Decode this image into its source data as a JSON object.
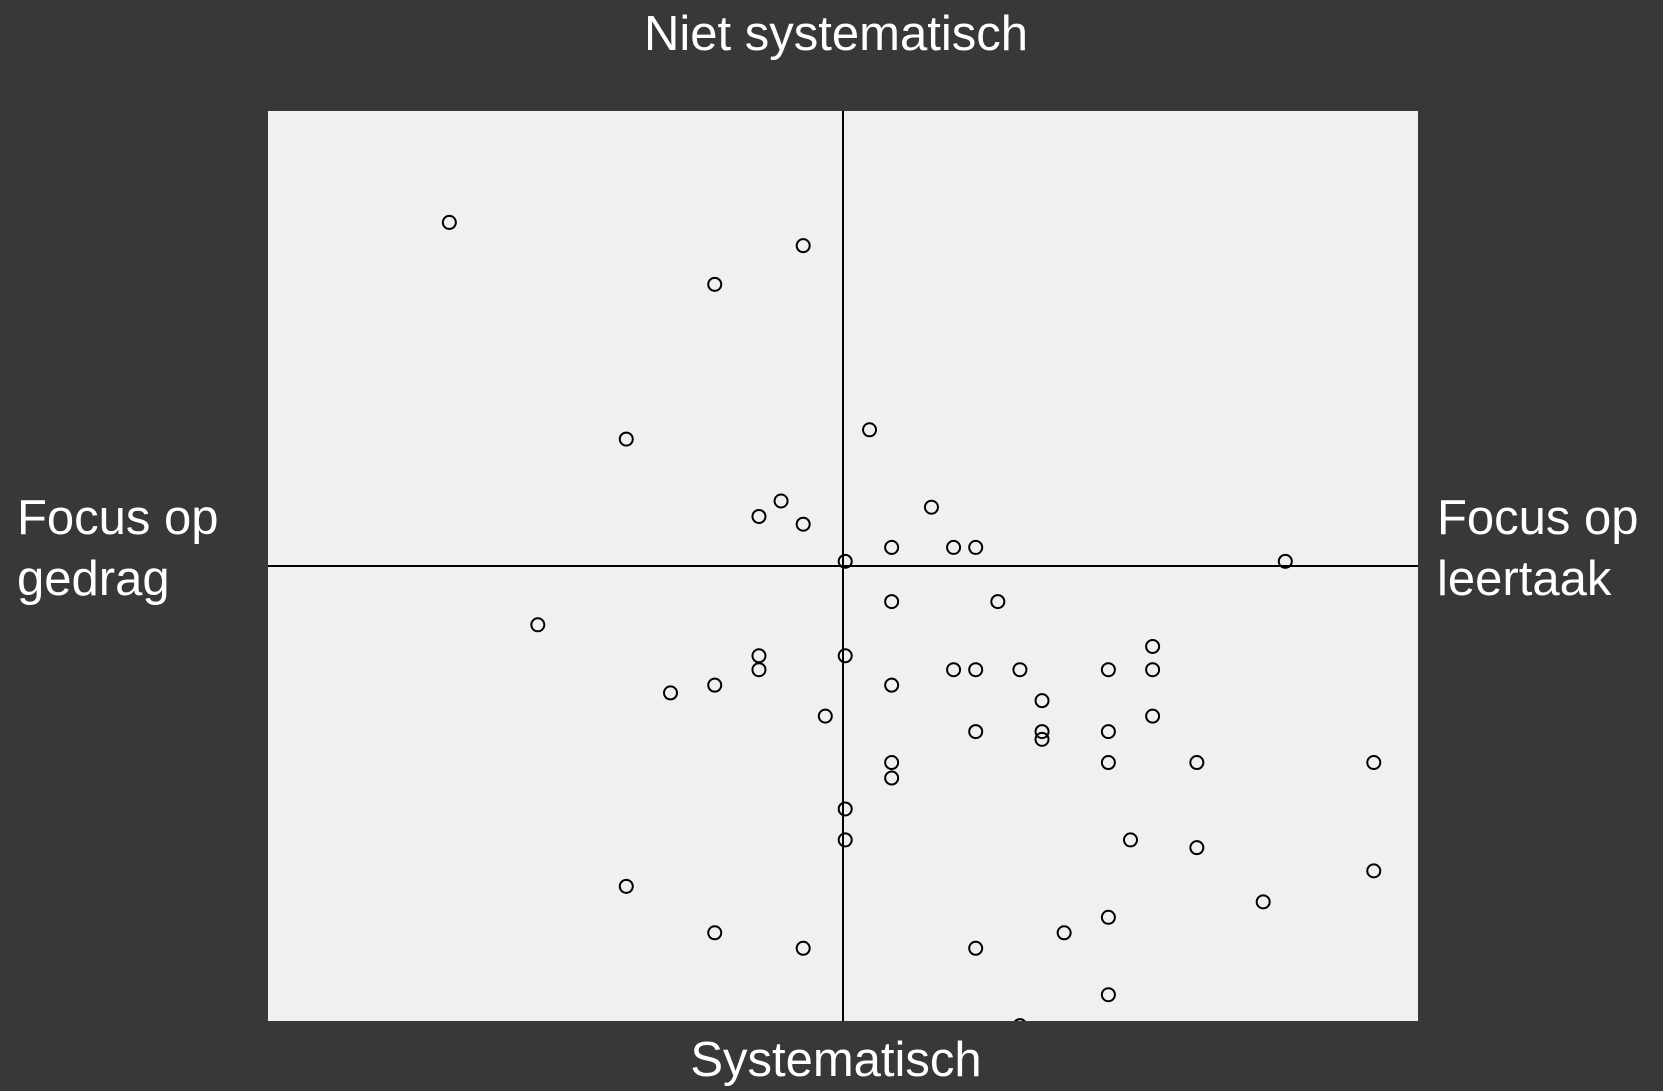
{
  "chart_data": {
    "type": "scatter",
    "title": "Niet systematisch",
    "x_label": "Systematisch",
    "left_label": [
      "Focus op",
      "gedrag"
    ],
    "right_label": [
      "Focus op",
      "leertaak"
    ],
    "color": "#000000",
    "xlim": [
      -13,
      13
    ],
    "ylim": [
      -29.4,
      29.4
    ],
    "x": [
      -8.9,
      -0.9,
      -2.9,
      -4.9,
      0.6,
      -1.4,
      -1.9,
      -0.9,
      2.0,
      1.1,
      2.5,
      3.0,
      0.05,
      10.0,
      -6.9,
      1.1,
      3.5,
      7.0,
      -1.9,
      -1.9,
      0.05,
      2.5,
      3.0,
      4.0,
      6.0,
      7.0,
      -3.9,
      -2.9,
      1.1,
      4.5,
      -0.4,
      7.0,
      3.0,
      4.5,
      4.5,
      6.0,
      1.1,
      1.1,
      6.0,
      8.0,
      12.0,
      0.05,
      0.05,
      6.5,
      8.0,
      12.0,
      9.5,
      -4.9,
      -2.9,
      -0.9,
      3.0,
      5.0,
      6.0,
      6.0,
      4.0
    ],
    "values": [
      22.2,
      20.7,
      18.2,
      8.2,
      8.8,
      4.2,
      3.2,
      2.7,
      3.8,
      1.2,
      1.2,
      1.2,
      0.3,
      0.3,
      -3.8,
      -2.3,
      -2.3,
      -5.2,
      -5.8,
      -6.7,
      -5.8,
      -6.7,
      -6.7,
      -6.7,
      -6.7,
      -6.7,
      -8.2,
      -7.7,
      -7.7,
      -8.7,
      -9.7,
      -9.7,
      -10.7,
      -10.7,
      -11.2,
      -10.7,
      -12.7,
      -13.7,
      -12.7,
      -12.7,
      -12.7,
      -15.7,
      -17.7,
      -17.7,
      -18.2,
      -19.7,
      -21.7,
      -20.7,
      -23.7,
      -24.7,
      -24.7,
      -23.7,
      -22.7,
      -27.7,
      -29.7
    ]
  }
}
